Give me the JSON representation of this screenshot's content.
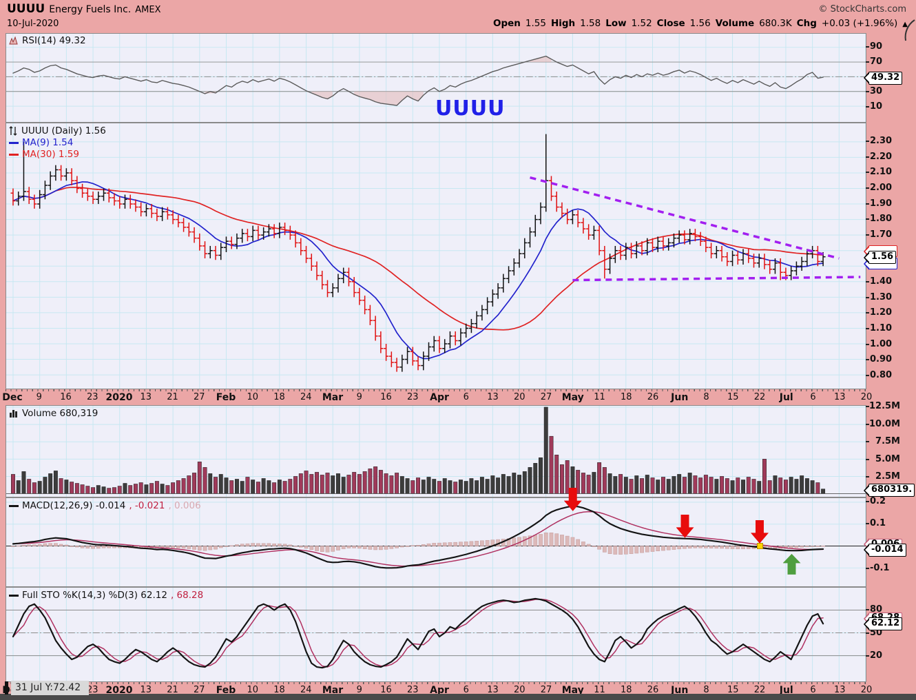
{
  "header": {
    "symbol": "UUUU",
    "company": "Energy Fuels Inc.",
    "exchange": "AMEX",
    "date": "10-Jul-2020",
    "copyright": "© StockCharts.com",
    "quote": [
      {
        "label": "Open",
        "value": "1.55"
      },
      {
        "label": "High",
        "value": "1.58"
      },
      {
        "label": "Low",
        "value": "1.52"
      },
      {
        "label": "Close",
        "value": "1.56"
      },
      {
        "label": "Volume",
        "value": "680.3K"
      },
      {
        "label": "Chg",
        "value": "+0.03 (+1.96%)"
      }
    ],
    "chg_direction": "▲"
  },
  "watermark": "UUUU",
  "tooltip": "31 Jul Y:72.42",
  "panels": {
    "rsi": {
      "legend": "RSI(14) 49.32",
      "axis_labels": [
        "90",
        "70",
        "30",
        "10"
      ],
      "tag": "49.32"
    },
    "price": {
      "legend": "UUUU (Daily) 1.56",
      "ma9_legend": "MA(9) 1.54",
      "ma30_legend": "MA(30) 1.59",
      "axis_labels": [
        "2.30",
        "2.20",
        "2.10",
        "2.00",
        "1.90",
        "1.80",
        "1.70",
        "1.60",
        "1.50",
        "1.40",
        "1.30",
        "1.20",
        "1.10",
        "1.00",
        "0.90",
        "0.80"
      ],
      "tag": "1.56"
    },
    "volume": {
      "legend": "Volume 680,319",
      "axis_labels": [
        "12.5M",
        "10.0M",
        "7.5M",
        "5.0M",
        "2.5M"
      ],
      "tag": "680319."
    },
    "macd": {
      "legend_macd": "MACD(12,26,9) -0.014",
      "legend_signal": ", -0.021",
      "legend_hist": ", 0.006",
      "axis_labels": [
        "0.2",
        "0.1",
        "-0.1"
      ],
      "tag": "-0.014",
      "tag_behind": "0.006"
    },
    "sto": {
      "legend_k": "Full STO %K(14,3) %D(3) 62.12",
      "legend_d": ", 68.28",
      "axis_labels": [
        "80",
        "50",
        "20"
      ],
      "tag": "62.12",
      "tag_behind": "68.28"
    }
  },
  "xaxis": {
    "labels": [
      "Dec",
      "9",
      "16",
      "23",
      "2020",
      "13",
      "21",
      "27",
      "Feb",
      "10",
      "18",
      "24",
      "Mar",
      "9",
      "16",
      "23",
      "Apr",
      "6",
      "13",
      "20",
      "27",
      "May",
      "11",
      "18",
      "26",
      "Jun",
      "8",
      "15",
      "22",
      "Jul",
      "6",
      "13",
      "20"
    ],
    "bold": [
      "Dec",
      "2020",
      "Feb",
      "Mar",
      "Apr",
      "May",
      "Jun",
      "Jul"
    ]
  },
  "colors": {
    "background": "#EBA6A6",
    "panel_bg": "#EFEFF9",
    "grid": "#C7E8F2",
    "panel_border": "#8A8A8A",
    "price_up": "#101010",
    "price_down": "#E01010",
    "ma9": "#2222CC",
    "ma30": "#E02222",
    "trendline": "#A21FF0",
    "volume_up": "#3C3C3C",
    "volume_down": "#A03A5A",
    "macd_line": "#141414",
    "macd_signal": "#B03060",
    "macd_hist": "#DCB9B9",
    "macd_hist_stroke": "#C8A2A2",
    "sto_k": "#141414",
    "sto_d": "#B03060",
    "rsi_line": "#5A5A5A",
    "rsi_fill": "#E2BBBB",
    "watermark_blue": "#2020E8",
    "arrow_red": "#E80C0C",
    "arrow_green": "#4F9E3F",
    "yellow_square": "#FFD400",
    "reference_gray": "#8C8C8C",
    "tooltip_bg": "#D9D9D9"
  },
  "chart_data": [
    {
      "id": "rsi",
      "type": "line",
      "title": "RSI(14)",
      "current": 49.32,
      "ylim": [
        0,
        100
      ],
      "reference_lines": [
        70,
        50,
        30
      ],
      "values": [
        55,
        58,
        62,
        60,
        56,
        58,
        62,
        65,
        66,
        62,
        60,
        57,
        54,
        52,
        50,
        49,
        51,
        52,
        50,
        48,
        47,
        50,
        48,
        46,
        44,
        46,
        43,
        42,
        45,
        43,
        41,
        40,
        38,
        36,
        33,
        30,
        27,
        30,
        28,
        33,
        38,
        36,
        41,
        44,
        42,
        46,
        43,
        45,
        47,
        44,
        48,
        46,
        43,
        39,
        35,
        31,
        28,
        25,
        22,
        20,
        24,
        30,
        34,
        30,
        26,
        23,
        21,
        19,
        16,
        14,
        13,
        12,
        11,
        18,
        24,
        20,
        17,
        25,
        31,
        35,
        30,
        33,
        38,
        36,
        40,
        43,
        45,
        48,
        51,
        54,
        57,
        59,
        62,
        64,
        66,
        68,
        70,
        72,
        74,
        76,
        78,
        74,
        70,
        67,
        64,
        66,
        62,
        58,
        54,
        57,
        47,
        40,
        46,
        50,
        48,
        52,
        49,
        53,
        50,
        54,
        52,
        55,
        52,
        54,
        57,
        59,
        55,
        58,
        56,
        53,
        49,
        45,
        48,
        44,
        41,
        45,
        42,
        46,
        43,
        40,
        44,
        40,
        37,
        42,
        36,
        34,
        38,
        43,
        47,
        53,
        56,
        48,
        49.32
      ]
    },
    {
      "id": "price",
      "type": "ohlc",
      "title": "UUUU Daily price",
      "current_close": 1.56,
      "ma9_current": 1.54,
      "ma30_current": 1.59,
      "ylim": [
        0.8,
        2.3
      ],
      "close": [
        1.92,
        1.95,
        1.98,
        1.93,
        1.9,
        1.96,
        2.02,
        2.08,
        2.12,
        2.08,
        2.1,
        2.05,
        2.0,
        1.97,
        1.95,
        1.93,
        1.95,
        1.97,
        1.94,
        1.92,
        1.9,
        1.93,
        1.9,
        1.88,
        1.85,
        1.87,
        1.84,
        1.82,
        1.85,
        1.83,
        1.8,
        1.78,
        1.75,
        1.72,
        1.68,
        1.63,
        1.58,
        1.6,
        1.57,
        1.62,
        1.66,
        1.64,
        1.68,
        1.71,
        1.69,
        1.73,
        1.7,
        1.72,
        1.74,
        1.71,
        1.75,
        1.73,
        1.7,
        1.65,
        1.6,
        1.55,
        1.5,
        1.44,
        1.38,
        1.33,
        1.36,
        1.42,
        1.46,
        1.4,
        1.33,
        1.28,
        1.22,
        1.15,
        1.05,
        0.97,
        0.92,
        0.88,
        0.85,
        0.9,
        0.95,
        0.89,
        0.86,
        0.92,
        0.98,
        1.02,
        0.97,
        1.0,
        1.05,
        1.02,
        1.07,
        1.1,
        1.13,
        1.18,
        1.22,
        1.27,
        1.32,
        1.36,
        1.42,
        1.47,
        1.52,
        1.58,
        1.65,
        1.72,
        1.8,
        1.88,
        2.05,
        1.95,
        1.88,
        1.84,
        1.8,
        1.83,
        1.78,
        1.74,
        1.7,
        1.73,
        1.6,
        1.48,
        1.55,
        1.6,
        1.57,
        1.62,
        1.58,
        1.63,
        1.6,
        1.65,
        1.62,
        1.66,
        1.63,
        1.65,
        1.68,
        1.7,
        1.67,
        1.71,
        1.69,
        1.66,
        1.62,
        1.58,
        1.6,
        1.56,
        1.53,
        1.57,
        1.54,
        1.58,
        1.55,
        1.52,
        1.55,
        1.51,
        1.48,
        1.52,
        1.46,
        1.44,
        1.47,
        1.5,
        1.53,
        1.58,
        1.6,
        1.53,
        1.56
      ],
      "high_overrides": {
        "2": 2.3,
        "100": 2.35
      },
      "low_overrides": {
        "72": 0.82,
        "111": 1.42,
        "144": 1.41
      }
    },
    {
      "id": "volume",
      "type": "bar",
      "title": "Volume",
      "current": 680319,
      "unit": "millions",
      "ylim": [
        0,
        12.5
      ],
      "values": [
        2.8,
        1.9,
        3.2,
        2.1,
        1.6,
        1.8,
        2.4,
        2.9,
        3.3,
        2.2,
        2.0,
        1.7,
        1.5,
        1.3,
        1.1,
        0.9,
        1.2,
        1.0,
        0.8,
        0.9,
        1.1,
        1.5,
        1.2,
        1.4,
        1.6,
        1.3,
        1.5,
        1.8,
        1.4,
        1.2,
        1.6,
        1.9,
        2.2,
        2.6,
        3.0,
        4.6,
        3.8,
        2.9,
        2.4,
        2.8,
        2.3,
        1.9,
        2.1,
        1.8,
        2.4,
        2.0,
        1.7,
        2.2,
        1.9,
        1.6,
        2.0,
        1.8,
        2.1,
        2.5,
        2.9,
        3.3,
        2.8,
        3.1,
        2.7,
        3.0,
        2.6,
        2.9,
        2.4,
        2.7,
        3.1,
        2.8,
        3.2,
        3.6,
        3.9,
        3.4,
        2.9,
        2.6,
        3.0,
        2.5,
        2.2,
        1.9,
        2.3,
        2.0,
        2.4,
        2.1,
        1.8,
        2.2,
        1.9,
        1.7,
        2.0,
        1.8,
        2.2,
        1.9,
        2.4,
        2.1,
        2.6,
        2.3,
        2.8,
        2.5,
        3.0,
        2.7,
        3.2,
        3.8,
        4.4,
        5.2,
        12.5,
        8.3,
        5.6,
        4.2,
        4.8,
        3.9,
        3.4,
        3.0,
        2.7,
        3.1,
        4.5,
        3.8,
        2.9,
        2.5,
        2.8,
        2.4,
        2.1,
        2.6,
        2.2,
        2.7,
        2.3,
        2.0,
        2.4,
        2.1,
        2.5,
        2.8,
        2.4,
        3.0,
        2.6,
        2.3,
        2.7,
        2.4,
        2.1,
        2.5,
        2.2,
        1.9,
        2.3,
        2.0,
        2.4,
        2.1,
        1.8,
        5.0,
        1.9,
        2.6,
        2.3,
        2.0,
        2.4,
        2.1,
        2.6,
        2.2,
        1.9,
        1.6,
        0.68
      ]
    },
    {
      "id": "macd",
      "type": "line",
      "title": "MACD(12,26,9)",
      "current_macd": -0.014,
      "current_signal": -0.021,
      "current_hist": 0.006,
      "ylim": [
        -0.1,
        0.2
      ],
      "macd": [
        0.01,
        0.012,
        0.015,
        0.018,
        0.02,
        0.024,
        0.03,
        0.034,
        0.037,
        0.035,
        0.033,
        0.028,
        0.022,
        0.016,
        0.012,
        0.008,
        0.006,
        0.006,
        0.004,
        0.002,
        0.0,
        -0.002,
        -0.004,
        -0.007,
        -0.01,
        -0.011,
        -0.013,
        -0.016,
        -0.015,
        -0.017,
        -0.02,
        -0.024,
        -0.028,
        -0.033,
        -0.04,
        -0.048,
        -0.055,
        -0.056,
        -0.057,
        -0.052,
        -0.046,
        -0.042,
        -0.036,
        -0.031,
        -0.027,
        -0.022,
        -0.02,
        -0.017,
        -0.014,
        -0.013,
        -0.011,
        -0.01,
        -0.012,
        -0.017,
        -0.024,
        -0.032,
        -0.042,
        -0.053,
        -0.063,
        -0.072,
        -0.075,
        -0.074,
        -0.071,
        -0.07,
        -0.072,
        -0.076,
        -0.082,
        -0.088,
        -0.094,
        -0.098,
        -0.1,
        -0.1,
        -0.099,
        -0.096,
        -0.091,
        -0.088,
        -0.086,
        -0.081,
        -0.075,
        -0.069,
        -0.065,
        -0.06,
        -0.055,
        -0.05,
        -0.044,
        -0.038,
        -0.031,
        -0.024,
        -0.016,
        -0.008,
        0.001,
        0.01,
        0.02,
        0.031,
        0.043,
        0.056,
        0.07,
        0.085,
        0.101,
        0.118,
        0.14,
        0.155,
        0.165,
        0.172,
        0.178,
        0.182,
        0.18,
        0.174,
        0.165,
        0.155,
        0.138,
        0.118,
        0.102,
        0.09,
        0.08,
        0.072,
        0.065,
        0.059,
        0.054,
        0.05,
        0.046,
        0.043,
        0.04,
        0.038,
        0.036,
        0.035,
        0.034,
        0.033,
        0.032,
        0.03,
        0.027,
        0.024,
        0.021,
        0.018,
        0.014,
        0.01,
        0.006,
        0.003,
        0.0,
        -0.003,
        -0.006,
        -0.01,
        -0.013,
        -0.015,
        -0.018,
        -0.02,
        -0.021,
        -0.021,
        -0.02,
        -0.018,
        -0.016,
        -0.015,
        -0.014
      ]
    },
    {
      "id": "sto",
      "type": "line",
      "title": "Full STO %K(14,3) %D(3)",
      "current_k": 62.12,
      "current_d": 68.28,
      "ylim": [
        0,
        100
      ],
      "reference_lines": [
        80,
        50,
        20
      ],
      "k": [
        45,
        60,
        75,
        85,
        88,
        80,
        70,
        55,
        40,
        30,
        22,
        15,
        18,
        25,
        32,
        35,
        30,
        22,
        15,
        12,
        10,
        15,
        22,
        28,
        25,
        20,
        15,
        12,
        18,
        25,
        30,
        25,
        18,
        12,
        8,
        6,
        5,
        10,
        18,
        30,
        42,
        38,
        45,
        55,
        65,
        75,
        85,
        88,
        85,
        80,
        85,
        88,
        80,
        65,
        45,
        25,
        10,
        5,
        4,
        6,
        15,
        28,
        40,
        35,
        25,
        18,
        12,
        8,
        6,
        5,
        8,
        12,
        18,
        30,
        42,
        35,
        28,
        40,
        52,
        55,
        45,
        50,
        58,
        55,
        62,
        68,
        74,
        80,
        85,
        88,
        90,
        92,
        93,
        92,
        90,
        91,
        93,
        94,
        95,
        94,
        92,
        88,
        84,
        80,
        75,
        68,
        58,
        45,
        32,
        22,
        15,
        12,
        25,
        40,
        45,
        38,
        30,
        35,
        42,
        55,
        62,
        68,
        72,
        75,
        78,
        82,
        85,
        80,
        72,
        62,
        50,
        40,
        35,
        28,
        22,
        25,
        30,
        35,
        30,
        25,
        20,
        15,
        12,
        18,
        25,
        20,
        15,
        30,
        45,
        60,
        72,
        75,
        62.12
      ]
    }
  ],
  "annotations": {
    "trendlines": [
      {
        "day1": 97,
        "price1": 2.07,
        "day2": 155,
        "price2": 1.55
      },
      {
        "day1": 105,
        "price1": 1.41,
        "day2": 159,
        "price2": 1.43
      }
    ],
    "arrows": [
      {
        "day": 105,
        "tip_value": 0.157,
        "dir": "down",
        "color": "red"
      },
      {
        "day": 126,
        "tip_value": 0.037,
        "dir": "down",
        "color": "red"
      },
      {
        "day": 140,
        "tip_value": 0.012,
        "dir": "down",
        "color": "red"
      },
      {
        "day": 146,
        "tip_value": -0.035,
        "dir": "up",
        "color": "green"
      }
    ],
    "square": {
      "day": 140,
      "value": 0.002
    }
  }
}
